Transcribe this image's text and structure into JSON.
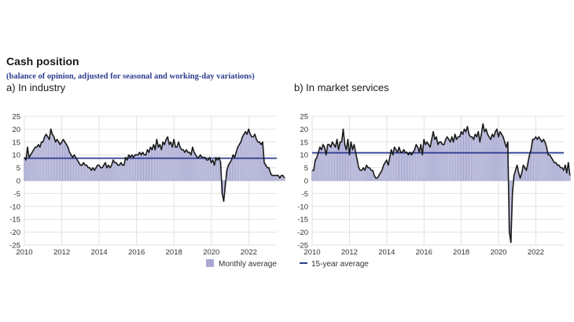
{
  "title": "Cash position",
  "subtitle": "(balance of opinion, adjusted for seasonal and working-day variations)",
  "legend": {
    "monthly_label": "Monthly average",
    "avg_label": "15-year average"
  },
  "colors": {
    "bar_fill": "#d3d3ec",
    "bar_stroke": "#8f8fbf",
    "line": "#1a1a1a",
    "avg_line": "#2e3d8f",
    "grid": "#e2e2e2",
    "legend_square": "#a9a9d2"
  },
  "chart_data": [
    {
      "type": "bar",
      "panel_title": "a)  In industry",
      "x_ticks": [
        "2010",
        "2012",
        "2014",
        "2016",
        "2018",
        "2020",
        "2022"
      ],
      "y_ticks": [
        "25",
        "20",
        "15",
        "10",
        "5",
        "0",
        "-5",
        "-10",
        "-15",
        "-20",
        "-25"
      ],
      "xlim": [
        2010.0,
        2023.5
      ],
      "ylim": [
        -25,
        25
      ],
      "grid": true,
      "legend_position": "bottom",
      "long_term_average": 8.7,
      "series": [
        {
          "kind": "bar+line",
          "x_start": 2010.0,
          "x_step": 0.0833,
          "values": [
            9,
            8,
            13,
            9,
            10,
            11,
            12,
            13,
            13,
            14,
            13,
            15,
            15,
            17,
            18,
            17,
            16,
            20,
            18,
            17,
            15,
            16,
            15,
            14,
            15,
            16,
            15,
            14,
            13,
            11,
            10,
            9,
            10,
            9,
            8,
            7,
            6,
            6,
            7,
            6,
            6,
            5,
            5,
            4,
            5,
            4,
            5,
            6,
            6,
            5,
            5,
            6,
            7,
            5,
            6,
            5,
            6,
            8,
            7,
            7,
            6,
            6,
            7,
            6,
            6,
            9,
            8,
            10,
            9,
            10,
            9,
            10,
            10,
            10,
            11,
            10,
            11,
            10,
            10,
            12,
            11,
            13,
            12,
            14,
            12,
            16,
            13,
            14,
            12,
            15,
            14,
            16,
            17,
            14,
            15,
            13,
            16,
            13,
            13,
            15,
            13,
            12,
            12,
            11,
            12,
            11,
            11,
            10,
            13,
            11,
            10,
            9,
            9,
            10,
            9,
            9,
            9,
            8,
            8,
            9,
            7,
            8,
            6,
            9,
            8,
            9,
            7,
            -5,
            -8,
            -2,
            4,
            6,
            7,
            8,
            10,
            9,
            11,
            13,
            14,
            15,
            17,
            18,
            19,
            18,
            20,
            18,
            17,
            17,
            18,
            16,
            15,
            15,
            14,
            15,
            7,
            6,
            5,
            5,
            3,
            2,
            2,
            2,
            2,
            2,
            1,
            2,
            2,
            1
          ],
          "name": "Monthly average"
        }
      ]
    },
    {
      "type": "bar",
      "panel_title": "b)  In market services",
      "x_ticks": [
        "2010",
        "2012",
        "2014",
        "2016",
        "2018",
        "2020",
        "2022"
      ],
      "y_ticks": [
        "25",
        "20",
        "15",
        "10",
        "5",
        "0",
        "-5",
        "-10",
        "-15",
        "-20",
        "-25"
      ],
      "xlim": [
        2010.0,
        2023.5
      ],
      "ylim": [
        -25,
        25
      ],
      "grid": true,
      "legend_position": "bottom",
      "long_term_average": 10.8,
      "series": [
        {
          "kind": "bar+line",
          "x_start": 2010.0,
          "x_step": 0.0833,
          "values": [
            4,
            4,
            8,
            9,
            11,
            13,
            12,
            14,
            13,
            10,
            14,
            14,
            13,
            15,
            14,
            13,
            16,
            12,
            15,
            15,
            20,
            14,
            12,
            16,
            10,
            15,
            12,
            14,
            11,
            8,
            5,
            4,
            4,
            5,
            4,
            6,
            5,
            5,
            4,
            4,
            2,
            1,
            1,
            2,
            3,
            4,
            6,
            7,
            8,
            6,
            9,
            12,
            10,
            13,
            12,
            11,
            13,
            11,
            11,
            12,
            11,
            11,
            10,
            11,
            10,
            11,
            12,
            14,
            13,
            11,
            14,
            10,
            16,
            14,
            15,
            14,
            13,
            16,
            19,
            16,
            17,
            14,
            15,
            15,
            14,
            14,
            16,
            17,
            16,
            15,
            17,
            15,
            18,
            16,
            17,
            17,
            19,
            18,
            20,
            19,
            21,
            18,
            17,
            17,
            16,
            18,
            17,
            19,
            15,
            18,
            22,
            19,
            20,
            18,
            17,
            16,
            18,
            17,
            19,
            20,
            17,
            19,
            18,
            17,
            15,
            13,
            15,
            -20,
            -24,
            -5,
            2,
            4,
            6,
            3,
            1,
            3,
            6,
            5,
            4,
            7,
            10,
            12,
            16,
            16,
            17,
            16,
            17,
            16,
            15,
            16,
            15,
            13,
            10,
            10,
            9,
            8,
            7,
            7,
            6,
            6,
            5,
            5,
            4,
            6,
            3,
            7,
            2
          ],
          "name": "Monthly average"
        }
      ]
    }
  ]
}
